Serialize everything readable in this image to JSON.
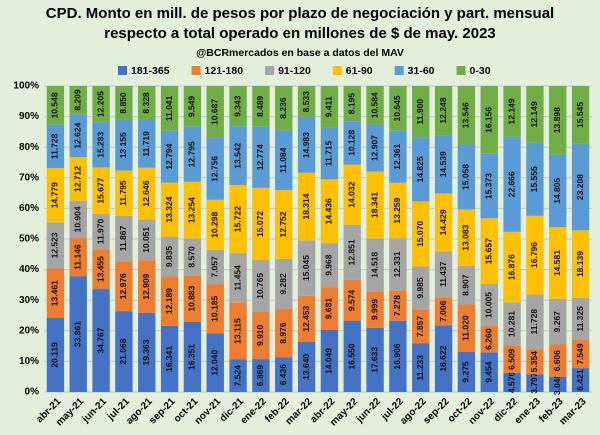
{
  "chart_data": {
    "type": "percent-stacked-bar",
    "title": [
      "CPD. Monto en mill. de pesos por plazo de negociación y part. mensual",
      "respecto a total operado en millones de $ de may. 2023"
    ],
    "subtitle": "@BCRmercados en base a datos del MAV",
    "categories": [
      "abr-21",
      "may-21",
      "jun-21",
      "jul-21",
      "ago-21",
      "sep-21",
      "oct-21",
      "nov-21",
      "dic-21",
      "ene-22",
      "feb-22",
      "mar-22",
      "abr-22",
      "may-22",
      "jun-22",
      "jul-22",
      "ago-22",
      "sep-22",
      "oct-22",
      "nov-22",
      "dic-22",
      "ene-23",
      "feb-23",
      "mar-23"
    ],
    "ylim": [
      0,
      100
    ],
    "yticks": [
      {
        "value": 0,
        "label": "0%"
      },
      {
        "value": 10,
        "label": "10%"
      },
      {
        "value": 20,
        "label": "20%"
      },
      {
        "value": 30,
        "label": "30%"
      },
      {
        "value": 40,
        "label": "40%"
      },
      {
        "value": 50,
        "label": "50%"
      },
      {
        "value": 60,
        "label": "60%"
      },
      {
        "value": 70,
        "label": "70%"
      },
      {
        "value": 80,
        "label": "80%"
      },
      {
        "value": 90,
        "label": "90%"
      },
      {
        "value": 100,
        "label": "100%"
      }
    ],
    "grid": true,
    "series": [
      {
        "name": "181-365",
        "color": "#4472c4",
        "values": [
          20119,
          33861,
          34767,
          21068,
          19363,
          16341,
          16351,
          12040,
          7524,
          6869,
          6436,
          13640,
          14049,
          16550,
          17633,
          16906,
          11233,
          16622,
          9275,
          9454,
          4570,
          3797,
          3048,
          6421
        ],
        "value_labels": [
          "20.119",
          "33.861",
          "34.767",
          "21.068",
          "19.363",
          "16.341",
          "16.351",
          "12.040",
          "7.524",
          "6.869",
          "6.436",
          "13.640",
          "14.049",
          "16.550",
          "17.633",
          "16.906",
          "11.233",
          "16.622",
          "9.275",
          "9.454",
          "4.570",
          "3.797",
          "3.048",
          "6.421"
        ]
      },
      {
        "name": "121-180",
        "color": "#ed7d31",
        "values": [
          13461,
          11146,
          13455,
          12976,
          12909,
          12189,
          10883,
          10185,
          13115,
          9910,
          8976,
          12453,
          9681,
          9574,
          9999,
          7278,
          7857,
          7006,
          11020,
          6260,
          6509,
          5354,
          6606,
          7549
        ],
        "value_labels": [
          "13.461",
          "11.146",
          "13.455",
          "12.976",
          "12.909",
          "12.189",
          "10.883",
          "10.185",
          "13.115",
          "9.910",
          "8.976",
          "12.453",
          "9.681",
          "9.574",
          "9.999",
          "7.278",
          "7.857",
          "7.006",
          "11.020",
          "6.260",
          "6.509",
          "5.354",
          "6.606",
          "7.549"
        ]
      },
      {
        "name": "91-120",
        "color": "#a5a5a5",
        "values": [
          12523,
          10904,
          11970,
          11867,
          10051,
          9835,
          8570,
          7057,
          11454,
          10765,
          9282,
          15045,
          9968,
          12851,
          14518,
          12331,
          9985,
          11437,
          8907,
          10005,
          10281,
          11728,
          9267,
          11325
        ],
        "value_labels": [
          "12.523",
          "10.904",
          "11.970",
          "11.867",
          "10.051",
          "9.835",
          "8.570",
          "7.057",
          "11.454",
          "10.765",
          "9.282",
          "15.045",
          "9.968",
          "12.851",
          "14.518",
          "12.331",
          "9.985",
          "11.437",
          "8.907",
          "10.005",
          "10.281",
          "11.728",
          "9.267",
          "11.325"
        ]
      },
      {
        "name": "61-90",
        "color": "#ffc000",
        "values": [
          14779,
          12712,
          15677,
          11795,
          12646,
          13324,
          13254,
          10298,
          15722,
          15072,
          12752,
          18314,
          14436,
          14032,
          18341,
          13259,
          15070,
          14429,
          13083,
          15657,
          16876,
          16796,
          14581,
          18139
        ],
        "value_labels": [
          "14.779",
          "12.712",
          "15.677",
          "11.795",
          "12.646",
          "13.324",
          "13.254",
          "10.298",
          "15.722",
          "15.072",
          "12.752",
          "18.314",
          "14.436",
          "14.032",
          "18.341",
          "13.259",
          "15.070",
          "14.429",
          "13.083",
          "15.657",
          "16.876",
          "16.796",
          "14.581",
          "18.139"
        ]
      },
      {
        "name": "31-60",
        "color": "#5b9bd5",
        "values": [
          11728,
          12624,
          15283,
          13155,
          11719,
          12794,
          12795,
          12756,
          13542,
          12774,
          11084,
          14983,
          11715,
          10128,
          12907,
          12361,
          14825,
          14539,
          15058,
          15373,
          22666,
          15555,
          14805,
          23208
        ],
        "value_labels": [
          "11.728",
          "12.624",
          "15.283",
          "13.155",
          "11.719",
          "12.794",
          "12.795",
          "12.756",
          "13.542",
          "12.774",
          "11.084",
          "14.983",
          "11.715",
          "10.128",
          "12.907",
          "12.361",
          "14.825",
          "14.539",
          "15.058",
          "15.373",
          "22.666",
          "15.555",
          "14.805",
          "23.208"
        ]
      },
      {
        "name": "0-30",
        "color": "#70ad47",
        "values": [
          10548,
          8209,
          12205,
          8850,
          8328,
          11041,
          9549,
          10687,
          9343,
          8489,
          8236,
          8533,
          9411,
          8195,
          10584,
          10645,
          11900,
          12248,
          13546,
          16156,
          12149,
          12149,
          13898,
          15545
        ],
        "value_labels": [
          "10.548",
          "8.209",
          "12.205",
          "8.850",
          "8.328",
          "11.041",
          "9.549",
          "10.687",
          "9.343",
          "8.489",
          "8.236",
          "8.533",
          "9.411",
          "8.195",
          "10.584",
          "10.645",
          "11.900",
          "12.248",
          "13.546",
          "16.156",
          "12.149",
          "12.149",
          "13.898",
          "15.545"
        ]
      }
    ]
  }
}
